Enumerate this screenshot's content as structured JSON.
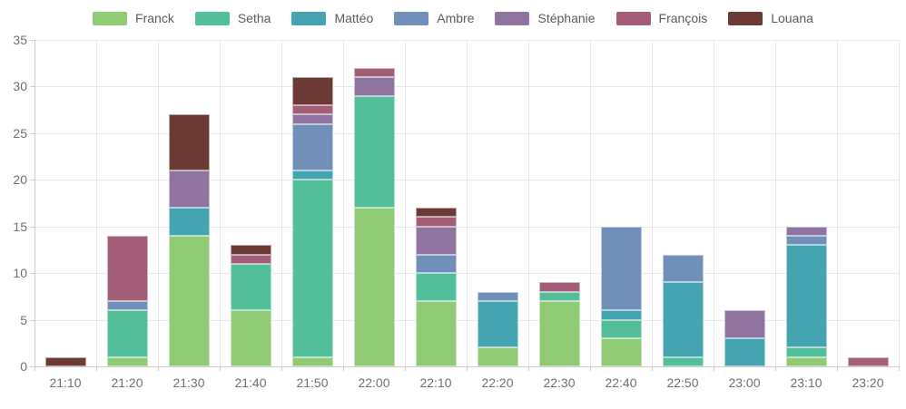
{
  "chart_data": {
    "type": "bar",
    "stacked": true,
    "title": "",
    "xlabel": "",
    "ylabel": "",
    "categories": [
      "21:10",
      "21:20",
      "21:30",
      "21:40",
      "21:50",
      "22:00",
      "22:10",
      "22:20",
      "22:30",
      "22:40",
      "22:50",
      "23:00",
      "23:10",
      "23:20"
    ],
    "series": [
      {
        "name": "Franck",
        "color": "#8fcb72",
        "values": [
          0,
          1,
          14,
          6,
          1,
          17,
          7,
          2,
          7,
          3,
          0,
          0,
          1,
          0
        ]
      },
      {
        "name": "Setha",
        "color": "#52bf9a",
        "values": [
          0,
          5,
          0,
          5,
          19,
          12,
          3,
          0,
          1,
          2,
          1,
          0,
          1,
          0
        ]
      },
      {
        "name": "Mattéo",
        "color": "#45a4b2",
        "values": [
          0,
          0,
          3,
          0,
          1,
          0,
          0,
          5,
          0,
          1,
          8,
          3,
          11,
          0
        ]
      },
      {
        "name": "Ambre",
        "color": "#7090ba",
        "values": [
          0,
          1,
          0,
          0,
          5,
          0,
          2,
          1,
          0,
          9,
          3,
          0,
          1,
          0
        ]
      },
      {
        "name": "Stéphanie",
        "color": "#8f73a1",
        "values": [
          0,
          0,
          4,
          0,
          1,
          2,
          3,
          0,
          0,
          0,
          0,
          3,
          1,
          0
        ]
      },
      {
        "name": "François",
        "color": "#a35d79",
        "values": [
          0,
          7,
          0,
          1,
          1,
          1,
          1,
          0,
          1,
          0,
          0,
          0,
          0,
          1
        ]
      },
      {
        "name": "Louana",
        "color": "#6b3a35",
        "values": [
          1,
          0,
          6,
          1,
          3,
          0,
          1,
          0,
          0,
          0,
          0,
          0,
          0,
          0
        ]
      }
    ],
    "y_axis": {
      "min": 0,
      "max": 35,
      "step": 5,
      "tick_labels": [
        "0",
        "5",
        "10",
        "15",
        "20",
        "25",
        "30",
        "35"
      ]
    },
    "legend_position": "top",
    "legend_labels": [
      "Franck",
      "Setha",
      "Mattéo",
      "Ambre",
      "Stéphanie",
      "François",
      "Louana"
    ],
    "grid": true
  }
}
